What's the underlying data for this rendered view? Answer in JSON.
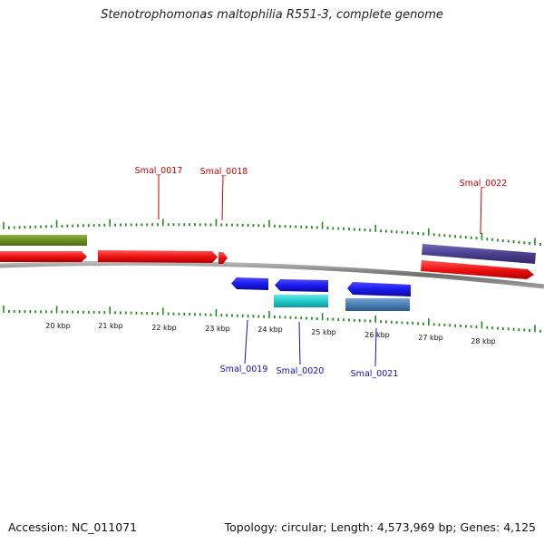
{
  "title": "Stenotrophomonas maltophilia R551-3, complete genome",
  "footer": {
    "accession": "Accession: NC_011071",
    "summary": "Topology: circular; Length: 4,573,969 bp; Genes: 4,125"
  },
  "ruler": {
    "unit": "kbp",
    "labels": [
      "20 kbp",
      "21 kbp",
      "22 kbp",
      "23 kbp",
      "24 kbp",
      "25 kbp",
      "26 kbp",
      "27 kbp",
      "28 kbp"
    ]
  },
  "gene_labels": {
    "Smal_0017": "Smal_0017",
    "Smal_0018": "Smal_0018",
    "Smal_0019": "Smal_0019",
    "Smal_0020": "Smal_0020",
    "Smal_0021": "Smal_0021",
    "Smal_0022": "Smal_0022"
  },
  "colors": {
    "tick": "#228b22",
    "backbone": "#8a8a8a",
    "label_red": "#cc0000",
    "label_blue": "#1010cc",
    "gene_red": "#ee1111",
    "gene_blue": "#1a1aee",
    "gene_olive": "#6b8e23",
    "gene_cyan": "#22cccc",
    "gene_steel": "#4a7fb5",
    "gene_slate": "#4b3f8f"
  }
}
